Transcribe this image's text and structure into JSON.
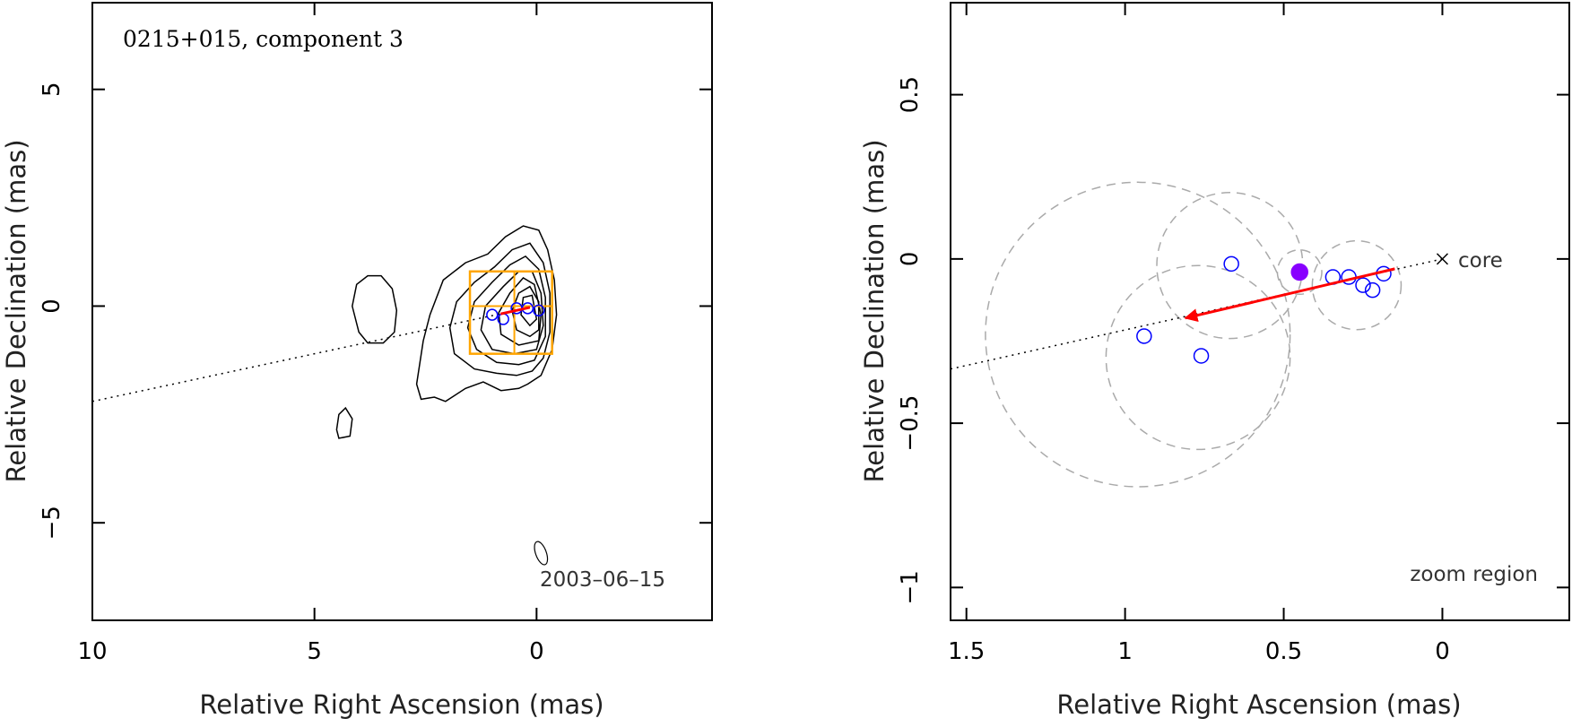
{
  "chart_data": [
    {
      "type": "scatter",
      "title": "0215+015, component 3",
      "xlabel": "Relative Right Ascension (mas)",
      "ylabel": "Relative Declination (mas)",
      "xlim": [
        10,
        -3.95
      ],
      "ylim": [
        -7.25,
        7
      ],
      "x_ticks": [
        10,
        5,
        0
      ],
      "y_ticks": [
        5,
        0,
        -5
      ],
      "x_tick_labels": [
        "10",
        "5",
        "0"
      ],
      "y_tick_labels": [
        "5",
        "0",
        "−5"
      ],
      "epoch_label": "2003–06–15",
      "colors": {
        "contours": "#000000",
        "components": "#0000ff",
        "arrow": "#ff0000",
        "zoom_box": "#ffa500",
        "dotted_line": "#000000"
      },
      "contours": [
        [
          [
            0.2,
            -1.8
          ],
          [
            -0.1,
            -1.6
          ],
          [
            -0.35,
            -1.0
          ],
          [
            -0.45,
            -0.2
          ],
          [
            -0.4,
            0.6
          ],
          [
            -0.25,
            1.3
          ],
          [
            -0.05,
            1.75
          ],
          [
            0.3,
            1.85
          ],
          [
            0.7,
            1.6
          ],
          [
            1.1,
            1.2
          ],
          [
            1.6,
            1.0
          ],
          [
            2.1,
            0.6
          ],
          [
            2.4,
            -0.2
          ],
          [
            2.55,
            -0.8
          ],
          [
            2.7,
            -1.8
          ],
          [
            2.6,
            -2.15
          ],
          [
            2.3,
            -2.1
          ],
          [
            2.05,
            -2.2
          ],
          [
            1.6,
            -1.9
          ],
          [
            1.2,
            -1.75
          ],
          [
            0.8,
            -1.95
          ],
          [
            0.4,
            -1.9
          ],
          [
            0.2,
            -1.8
          ]
        ],
        [
          [
            0.1,
            -1.5
          ],
          [
            -0.15,
            -1.2
          ],
          [
            -0.3,
            -0.6
          ],
          [
            -0.3,
            0.3
          ],
          [
            -0.15,
            1.0
          ],
          [
            0.15,
            1.45
          ],
          [
            0.55,
            1.3
          ],
          [
            0.95,
            0.9
          ],
          [
            1.4,
            0.55
          ],
          [
            1.8,
            0.1
          ],
          [
            1.95,
            -0.5
          ],
          [
            1.85,
            -1.1
          ],
          [
            1.4,
            -1.45
          ],
          [
            0.9,
            -1.55
          ],
          [
            0.45,
            -1.6
          ],
          [
            0.1,
            -1.5
          ]
        ],
        [
          [
            0.05,
            -1.25
          ],
          [
            -0.2,
            -0.7
          ],
          [
            -0.2,
            0.2
          ],
          [
            -0.05,
            0.85
          ],
          [
            0.25,
            1.15
          ],
          [
            0.6,
            0.95
          ],
          [
            1.0,
            0.55
          ],
          [
            1.4,
            0.1
          ],
          [
            1.55,
            -0.5
          ],
          [
            1.35,
            -1.0
          ],
          [
            0.9,
            -1.3
          ],
          [
            0.4,
            -1.35
          ],
          [
            0.05,
            -1.25
          ]
        ],
        [
          [
            0.0,
            -1.0
          ],
          [
            -0.15,
            -0.45
          ],
          [
            -0.1,
            0.3
          ],
          [
            0.1,
            0.8
          ],
          [
            0.4,
            0.8
          ],
          [
            0.75,
            0.45
          ],
          [
            1.15,
            0.0
          ],
          [
            1.25,
            -0.55
          ],
          [
            1.0,
            -1.0
          ],
          [
            0.5,
            -1.1
          ],
          [
            0.0,
            -1.0
          ]
        ],
        [
          [
            -0.05,
            -0.8
          ],
          [
            -0.1,
            -0.2
          ],
          [
            0.05,
            0.5
          ],
          [
            0.3,
            0.65
          ],
          [
            0.6,
            0.3
          ],
          [
            0.85,
            -0.15
          ],
          [
            0.8,
            -0.65
          ],
          [
            0.4,
            -0.9
          ],
          [
            -0.05,
            -0.8
          ]
        ],
        [
          [
            -0.05,
            -0.55
          ],
          [
            -0.05,
            0.1
          ],
          [
            0.15,
            0.45
          ],
          [
            0.4,
            0.3
          ],
          [
            0.55,
            -0.1
          ],
          [
            0.45,
            -0.55
          ],
          [
            0.15,
            -0.7
          ],
          [
            -0.05,
            -0.55
          ]
        ],
        [
          [
            0.0,
            -0.3
          ],
          [
            0.1,
            0.25
          ],
          [
            0.3,
            0.2
          ],
          [
            0.35,
            -0.2
          ],
          [
            0.15,
            -0.45
          ],
          [
            0.0,
            -0.3
          ]
        ],
        [
          [
            3.2,
            -0.6
          ],
          [
            3.45,
            -0.85
          ],
          [
            3.8,
            -0.85
          ],
          [
            4.0,
            -0.6
          ],
          [
            4.15,
            0.0
          ],
          [
            4.05,
            0.5
          ],
          [
            3.8,
            0.7
          ],
          [
            3.5,
            0.7
          ],
          [
            3.25,
            0.4
          ],
          [
            3.15,
            -0.1
          ],
          [
            3.2,
            -0.6
          ]
        ],
        [
          [
            4.45,
            -3.05
          ],
          [
            4.2,
            -3.0
          ],
          [
            4.15,
            -2.6
          ],
          [
            4.3,
            -2.35
          ],
          [
            4.45,
            -2.5
          ],
          [
            4.5,
            -2.85
          ],
          [
            4.45,
            -3.05
          ]
        ]
      ],
      "components": [
        {
          "x": 1.0,
          "y": -0.2,
          "r": 0.12
        },
        {
          "x": 0.75,
          "y": -0.3,
          "r": 0.12
        },
        {
          "x": 0.45,
          "y": -0.05,
          "r": 0.12
        },
        {
          "x": 0.2,
          "y": -0.05,
          "r": 0.12
        },
        {
          "x": -0.05,
          "y": -0.1,
          "r": 0.12
        }
      ],
      "arrow": {
        "from": [
          0.15,
          -0.03
        ],
        "to": [
          0.81,
          -0.18
        ]
      },
      "jet_line": {
        "from": [
          10,
          -2.2
        ],
        "to": [
          0,
          0
        ]
      },
      "zoom_box": {
        "x": [
          1.5,
          -0.35
        ],
        "y": [
          -1.1,
          0.8
        ],
        "cross_x": 0.5,
        "cross_y": 0.0
      },
      "beam": {
        "x": -0.1,
        "y": -5.7,
        "rx": 0.12,
        "ry": 0.28
      }
    },
    {
      "type": "scatter",
      "title": "",
      "xlabel": "Relative Right Ascension (mas)",
      "ylabel": "Relative Declination (mas)",
      "xlim": [
        1.55,
        -0.4
      ],
      "ylim": [
        -1.1,
        0.78
      ],
      "x_ticks": [
        1.5,
        1,
        0.5,
        0
      ],
      "y_ticks": [
        0.5,
        0,
        -0.5,
        -1
      ],
      "x_tick_labels": [
        "1.5",
        "1",
        "0.5",
        "0"
      ],
      "y_tick_labels": [
        "0.5",
        "0",
        "−0.5",
        "−1"
      ],
      "core_label": "core",
      "zoom_label": "zoom region",
      "colors": {
        "circles": "#aaaaaa",
        "points": "#0000ff",
        "highlight": "#8800ff",
        "arrow": "#ff0000"
      },
      "uncertainty_circles": [
        {
          "x": 0.96,
          "y": -0.23,
          "r": 0.48
        },
        {
          "x": 0.77,
          "y": -0.3,
          "r": 0.29
        },
        {
          "x": 0.67,
          "y": -0.02,
          "r": 0.23
        },
        {
          "x": 0.45,
          "y": -0.04,
          "r": 0.07
        },
        {
          "x": 0.27,
          "y": -0.08,
          "r": 0.14
        }
      ],
      "points": [
        {
          "x": 0.94,
          "y": -0.235,
          "filled": false
        },
        {
          "x": 0.76,
          "y": -0.295,
          "filled": false
        },
        {
          "x": 0.665,
          "y": -0.015,
          "filled": false
        },
        {
          "x": 0.45,
          "y": -0.04,
          "filled": true
        },
        {
          "x": 0.345,
          "y": -0.055,
          "filled": false
        },
        {
          "x": 0.295,
          "y": -0.055,
          "filled": false
        },
        {
          "x": 0.25,
          "y": -0.08,
          "filled": false
        },
        {
          "x": 0.22,
          "y": -0.095,
          "filled": false
        },
        {
          "x": 0.185,
          "y": -0.045,
          "filled": false
        }
      ],
      "arrow": {
        "from": [
          0.15,
          -0.03
        ],
        "to": [
          0.81,
          -0.18
        ]
      },
      "jet_line": {
        "from": [
          1.55,
          -0.335
        ],
        "to": [
          0,
          0
        ]
      },
      "core": {
        "x": 0,
        "y": 0
      }
    }
  ]
}
